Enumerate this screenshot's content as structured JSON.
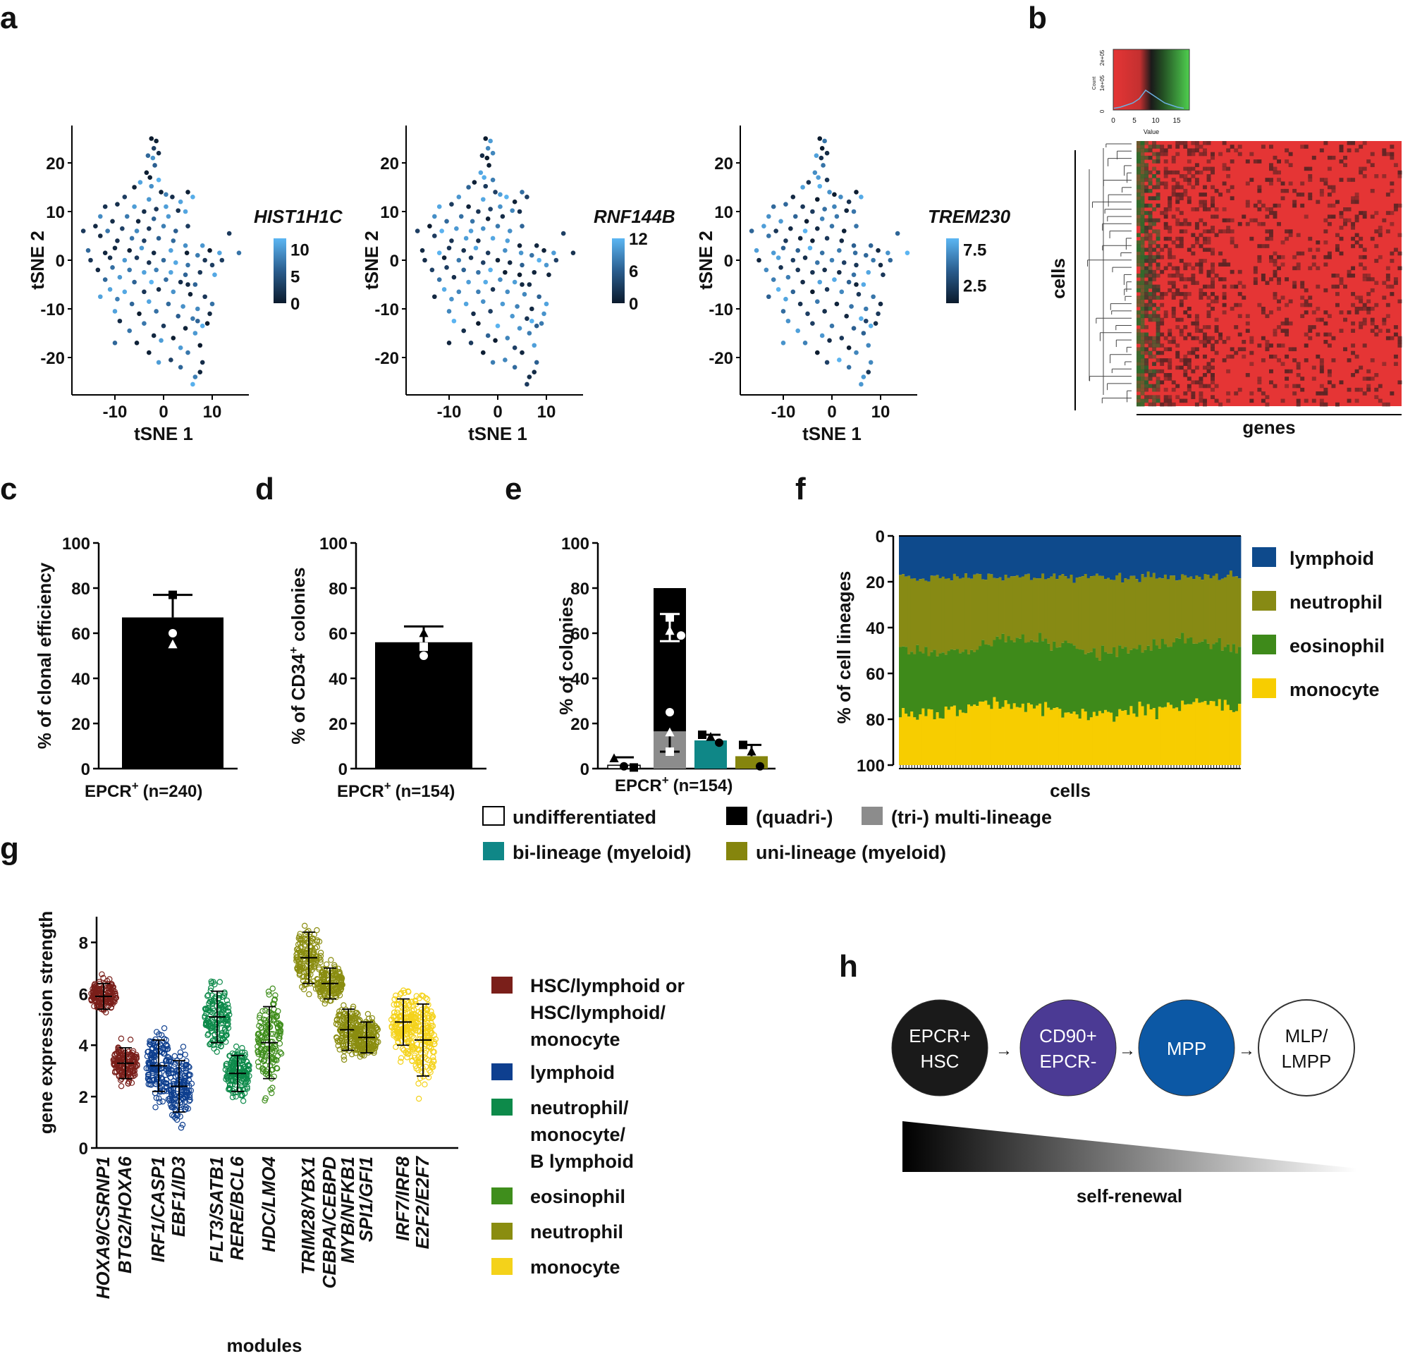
{
  "panel_labels": {
    "a": "a",
    "b": "b",
    "c": "c",
    "d": "d",
    "e": "e",
    "f": "f",
    "g": "g",
    "h": "h"
  },
  "chart_data": [
    {
      "id": "a",
      "type": "scatter",
      "xlabel": "tSNE 1",
      "ylabel": "tSNE 2",
      "x_ticks": [
        "-10",
        "0",
        "10"
      ],
      "y_ticks": [
        "20",
        "10",
        "0",
        "-10",
        "-20"
      ],
      "xlim": [
        -18,
        18
      ],
      "ylim": [
        -27,
        27
      ],
      "subplots": [
        {
          "gene": "HIST1H1C",
          "colorbar_ticks": [
            "10",
            "5",
            "0"
          ],
          "color_range": [
            0,
            12
          ]
        },
        {
          "gene": "RNF144B",
          "colorbar_ticks": [
            "12",
            "6",
            "0"
          ],
          "color_range": [
            0,
            12
          ]
        },
        {
          "gene": "TREM230",
          "colorbar_ticks": [
            "7.5",
            "2.5"
          ],
          "color_range": [
            0,
            9
          ]
        }
      ],
      "points_xy": [
        [
          -2.5,
          25
        ],
        [
          -1.5,
          24.5
        ],
        [
          -2,
          23
        ],
        [
          -1,
          22
        ],
        [
          -3.2,
          21.5
        ],
        [
          -2.2,
          21
        ],
        [
          -1.8,
          19.5
        ],
        [
          -3.5,
          18
        ],
        [
          -2.8,
          17
        ],
        [
          -1,
          16.5
        ],
        [
          -4.8,
          16
        ],
        [
          -6,
          15
        ],
        [
          -2.5,
          15.2
        ],
        [
          -0.5,
          14
        ],
        [
          0.5,
          13.5
        ],
        [
          -8,
          13
        ],
        [
          -3,
          12.5
        ],
        [
          1.8,
          13
        ],
        [
          3.5,
          12
        ],
        [
          5,
          14
        ],
        [
          6,
          13
        ],
        [
          -12,
          11
        ],
        [
          -9.5,
          11.5
        ],
        [
          -6,
          11
        ],
        [
          -4,
          10
        ],
        [
          -1.5,
          10.5
        ],
        [
          0.5,
          11
        ],
        [
          3,
          10.2
        ],
        [
          4.5,
          10
        ],
        [
          -13,
          9
        ],
        [
          -10.5,
          8
        ],
        [
          -7.5,
          9
        ],
        [
          -5.2,
          8
        ],
        [
          -2,
          8.5
        ],
        [
          1,
          9
        ],
        [
          -14,
          7
        ],
        [
          -11.5,
          6
        ],
        [
          -8.5,
          6.5
        ],
        [
          -5.5,
          6
        ],
        [
          -3,
          6.5
        ],
        [
          0,
          7
        ],
        [
          2.5,
          6
        ],
        [
          5,
          7
        ],
        [
          -16.5,
          6
        ],
        [
          -13,
          5
        ],
        [
          -9.5,
          4
        ],
        [
          -6.5,
          4.5
        ],
        [
          -4,
          4
        ],
        [
          -1,
          4.5
        ],
        [
          2,
          4
        ],
        [
          4.5,
          3
        ],
        [
          8,
          3
        ],
        [
          13.5,
          5.5
        ],
        [
          -15.5,
          2
        ],
        [
          -12,
          1.5
        ],
        [
          -10,
          2.5
        ],
        [
          -7,
          2
        ],
        [
          -4.5,
          2.5
        ],
        [
          -2,
          1.5
        ],
        [
          1.5,
          2
        ],
        [
          4.8,
          1.5
        ],
        [
          7,
          1
        ],
        [
          9.5,
          2
        ],
        [
          11.5,
          1.5
        ],
        [
          15.5,
          1.5
        ],
        [
          -15,
          0
        ],
        [
          -11,
          0.5
        ],
        [
          -8,
          0
        ],
        [
          -5.5,
          0.5
        ],
        [
          -3,
          -0.5
        ],
        [
          0,
          0
        ],
        [
          2.5,
          -0.5
        ],
        [
          5,
          -1
        ],
        [
          8.5,
          0
        ],
        [
          10,
          -1
        ],
        [
          12,
          0
        ],
        [
          -13.5,
          -2
        ],
        [
          -10.5,
          -1.5
        ],
        [
          -7,
          -2
        ],
        [
          -4,
          -2.5
        ],
        [
          -1.5,
          -2
        ],
        [
          1.5,
          -2.5
        ],
        [
          4.5,
          -3
        ],
        [
          7.5,
          -2.5
        ],
        [
          10.5,
          -3
        ],
        [
          -12,
          -4
        ],
        [
          -9,
          -3.5
        ],
        [
          -6,
          -4.5
        ],
        [
          -2.5,
          -4.5
        ],
        [
          0.5,
          -4
        ],
        [
          3.5,
          -4.5
        ],
        [
          6.5,
          -5
        ],
        [
          -11,
          -6
        ],
        [
          -8,
          -6.5
        ],
        [
          -4,
          -6.5
        ],
        [
          -1,
          -6
        ],
        [
          2,
          -6.5
        ],
        [
          5.5,
          -7
        ],
        [
          8.5,
          -7.5
        ],
        [
          -13,
          -7.5
        ],
        [
          -9.5,
          -8
        ],
        [
          -6.5,
          -9
        ],
        [
          -3,
          -8.5
        ],
        [
          1,
          -9
        ],
        [
          4,
          -9.5
        ],
        [
          7,
          -10
        ],
        [
          -10,
          -10.5
        ],
        [
          -5,
          -11
        ],
        [
          -1.5,
          -10.5
        ],
        [
          3,
          -11.5
        ],
        [
          6,
          -12
        ],
        [
          9.5,
          -11
        ],
        [
          -9,
          -12.5
        ],
        [
          -4,
          -13
        ],
        [
          0,
          -13.5
        ],
        [
          4.5,
          -14
        ],
        [
          8,
          -13.5
        ],
        [
          -7,
          -14.5
        ],
        [
          -2,
          -15.5
        ],
        [
          2,
          -16
        ],
        [
          6.5,
          -15
        ],
        [
          -10,
          -17
        ],
        [
          -5.5,
          -17
        ],
        [
          -0.5,
          -16.5
        ],
        [
          3.5,
          -18
        ],
        [
          7.5,
          -17.5
        ],
        [
          -3,
          -19
        ],
        [
          1.5,
          -20.5
        ],
        [
          5,
          -19
        ],
        [
          -1,
          -21
        ],
        [
          3.5,
          -22
        ],
        [
          8,
          -21
        ],
        [
          6.5,
          -24
        ],
        [
          7.5,
          -23
        ],
        [
          6,
          -25.5
        ],
        [
          9,
          -13
        ],
        [
          7,
          -12.5
        ],
        [
          10,
          -9
        ],
        [
          5,
          -5
        ]
      ],
      "point_values_index": "per-subplot expression in color_range, pseudo-sampled"
    },
    {
      "id": "b",
      "type": "heatmap",
      "xlabel": "genes",
      "ylabel": "cells",
      "color_key": {
        "ticks": [
          "0",
          "5",
          "10",
          "15"
        ],
        "xlabel": "Value",
        "ylabel": "Count",
        "y_ticks": [
          "0",
          "1e+05",
          "2e+05"
        ],
        "colors": [
          "#e53535",
          "#1a1a1a",
          "#3ec43e"
        ],
        "histogram": [
          0.05,
          0.1,
          0.2,
          0.3,
          0.5,
          0.9,
          0.7,
          0.5,
          0.3,
          0.2,
          0.1,
          0.05
        ]
      }
    },
    {
      "id": "c",
      "type": "bar",
      "categories": [
        "EPCR"
      ],
      "category_suffix": "(n=240)",
      "sup": "+",
      "values": [
        67
      ],
      "error": 10,
      "points": [
        {
          "v": 77,
          "shape": "square"
        },
        {
          "v": 60,
          "shape": "circle"
        },
        {
          "v": 55,
          "shape": "triangle"
        }
      ],
      "ylabel": "% of clonal efficiency",
      "ylim": [
        0,
        100
      ],
      "y_ticks": [
        "0",
        "20",
        "40",
        "60",
        "80",
        "100"
      ],
      "color": "#000000"
    },
    {
      "id": "d",
      "type": "bar",
      "categories": [
        "EPCR"
      ],
      "category_suffix": "(n=154)",
      "sup": "+",
      "values": [
        56
      ],
      "error": 7,
      "points": [
        {
          "v": 60,
          "shape": "triangle"
        },
        {
          "v": 54,
          "shape": "square"
        },
        {
          "v": 50,
          "shape": "circle"
        }
      ],
      "ylabel_parts": [
        "% of CD34",
        "+",
        " colonies"
      ],
      "ylim": [
        0,
        100
      ],
      "y_ticks": [
        "0",
        "20",
        "40",
        "60",
        "80",
        "100"
      ],
      "color": "#000000"
    },
    {
      "id": "e",
      "type": "bar",
      "xlabel": "EPCR",
      "xlabel_suffix": "(n=154)",
      "sup": "+",
      "ylabel": "% of colonies",
      "ylim": [
        0,
        100
      ],
      "y_ticks": [
        "0",
        "20",
        "40",
        "60",
        "80",
        "100"
      ],
      "bars": [
        {
          "name": "undifferentiated",
          "value": 1.5,
          "error": 3.5,
          "color": "#ffffff",
          "points": [
            {
              "v": 4.5,
              "shape": "triangle"
            },
            {
              "v": 1,
              "shape": "circle"
            },
            {
              "v": 0.5,
              "shape": "square"
            }
          ]
        },
        {
          "name": "multi-lineage",
          "value": 80,
          "stack": [
            {
              "name": "(tri-)",
              "value": 16.5,
              "color": "#8c8c8c"
            },
            {
              "name": "(quadri-)",
              "value": 63.5,
              "color": "#000000"
            }
          ],
          "inner_error": {
            "mean": 62.5,
            "sd": 6
          },
          "inner_points": [
            {
              "v": 67,
              "shape": "square"
            },
            {
              "v": 61,
              "shape": "triangle"
            },
            {
              "v": 59,
              "shape": "circle"
            }
          ],
          "tri_error": {
            "mean": 16,
            "sd": 8.5
          },
          "tri_points": [
            {
              "v": 25,
              "shape": "circle"
            },
            {
              "v": 16,
              "shape": "triangle"
            },
            {
              "v": 7.5,
              "shape": "square"
            }
          ]
        },
        {
          "name": "bi-lineage (myeloid)",
          "value": 12.5,
          "error": 2.5,
          "color": "#0f8787",
          "points": [
            {
              "v": 15,
              "shape": "square"
            },
            {
              "v": 14,
              "shape": "triangle"
            },
            {
              "v": 11.5,
              "shape": "circle"
            }
          ]
        },
        {
          "name": "uni-lineage (myeloid)",
          "value": 5.5,
          "error": 5,
          "color": "#85850d",
          "points": [
            {
              "v": 10.5,
              "shape": "square"
            },
            {
              "v": 7.5,
              "shape": "triangle"
            },
            {
              "v": 1,
              "shape": "circle"
            }
          ]
        }
      ],
      "legend": [
        {
          "label": "undifferentiated",
          "color": "#ffffff"
        },
        {
          "label": "(quadri-)",
          "color": "#000000"
        },
        {
          "label": "(tri-) multi-lineage",
          "color": "#8c8c8c"
        },
        {
          "label": "bi-lineage (myeloid)",
          "color": "#0f8787"
        },
        {
          "label": "uni-lineage (myeloid)",
          "color": "#85850d"
        }
      ]
    },
    {
      "id": "f",
      "type": "bar",
      "stacked": true,
      "xlabel": "cells",
      "ylabel": "% of cell lineages",
      "ylim": [
        0,
        100
      ],
      "y_ticks": [
        "0",
        "20",
        "40",
        "60",
        "80",
        "100"
      ],
      "n_cells": 120,
      "series": [
        {
          "name": "lymphoid",
          "color": "#0e4a8c",
          "mean_share": 18
        },
        {
          "name": "neutrophil",
          "color": "#878a14",
          "mean_share": 30
        },
        {
          "name": "eosinophil",
          "color": "#3e8a1a",
          "mean_share": 28
        },
        {
          "name": "monocyte",
          "color": "#f7cd00",
          "mean_share": 24
        }
      ],
      "boundaries_mean": [
        18,
        48,
        76
      ]
    },
    {
      "id": "g",
      "type": "scatter",
      "xlabel": "modules",
      "ylabel": "gene expression strength",
      "ylim": [
        0,
        9
      ],
      "y_ticks": [
        "0",
        "2",
        "4",
        "6",
        "8"
      ],
      "groups": [
        {
          "module": "HSC/lymphoid or HSC/lymphoid/monocyte",
          "color": "#7a1f1a",
          "members": [
            {
              "label": "HOXA9/CSRNP1",
              "mean": 5.9,
              "sd": 0.5
            },
            {
              "label": "BTG2/HOXA6",
              "mean": 3.3,
              "sd": 0.6
            }
          ]
        },
        {
          "module": "lymphoid",
          "color": "#0e3f8f",
          "members": [
            {
              "label": "IRF1/CASP1",
              "mean": 3.2,
              "sd": 1.0
            },
            {
              "label": "EBF1/ID3",
              "mean": 2.4,
              "sd": 1.0
            }
          ]
        },
        {
          "module": "neutrophil/monocyte/B lymphoid",
          "color": "#0d8a4a",
          "members": [
            {
              "label": "FLT3/SATB1",
              "mean": 5.1,
              "sd": 1.0
            },
            {
              "label": "RERE/BCL6",
              "mean": 2.9,
              "sd": 0.7
            }
          ]
        },
        {
          "module": "eosinophil",
          "color": "#3f8e1c",
          "members": [
            {
              "label": "HDC/LMO4",
              "mean": 4.1,
              "sd": 1.4
            }
          ]
        },
        {
          "module": "neutrophil",
          "color": "#8a8d10",
          "members": [
            {
              "label": "TRIM28/YBX1",
              "mean": 7.4,
              "sd": 1.0
            },
            {
              "label": "CEBPA/CEBPD",
              "mean": 6.4,
              "sd": 0.6
            },
            {
              "label": "MYB/NFKB1",
              "mean": 4.6,
              "sd": 0.8
            },
            {
              "label": "SPI1/GFI1",
              "mean": 4.3,
              "sd": 0.6
            }
          ]
        },
        {
          "module": "monocyte",
          "color": "#f4d21a",
          "members": [
            {
              "label": "IRF7/IRF8",
              "mean": 4.9,
              "sd": 0.9
            },
            {
              "label": "E2F2/E2F7",
              "mean": 4.2,
              "sd": 1.4
            }
          ]
        }
      ],
      "legend": [
        {
          "lines": [
            "HSC/lymphoid or",
            "HSC/lymphoid/",
            "monocyte"
          ],
          "color": "#7a1f1a"
        },
        {
          "lines": [
            "lymphoid"
          ],
          "color": "#0e3f8f"
        },
        {
          "lines": [
            "neutrophil/",
            "monocyte/",
            "B lymphoid"
          ],
          "color": "#0d8a4a"
        },
        {
          "lines": [
            "eosinophil"
          ],
          "color": "#3f8e1c"
        },
        {
          "lines": [
            "neutrophil"
          ],
          "color": "#8a8d10"
        },
        {
          "lines": [
            "monocyte"
          ],
          "color": "#f4d21a"
        }
      ]
    }
  ],
  "diagram_h": {
    "nodes": [
      {
        "lines": [
          "EPCR+",
          "HSC"
        ],
        "color": "#1a1a1a",
        "text_color": "#ffffff"
      },
      {
        "lines": [
          "CD90+",
          "EPCR-"
        ],
        "color": "#4b3a94",
        "text_color": "#ffffff"
      },
      {
        "lines": [
          "MPP"
        ],
        "color": "#0c58a5",
        "text_color": "#ffffff"
      },
      {
        "lines": [
          "MLP/",
          "LMPP"
        ],
        "color": "#ffffff",
        "text_color": "#111111"
      }
    ],
    "arrow_glyph": "→",
    "gradient_label": "self-renewal"
  }
}
